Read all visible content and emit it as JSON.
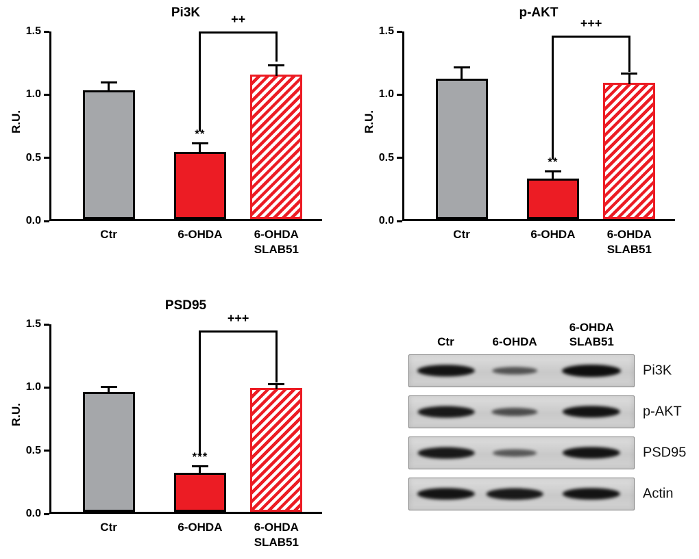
{
  "colors": {
    "gray_bar": "#a5a7aa",
    "red_bar": "#ec1c24",
    "axis": "#000000"
  },
  "chart_data": [
    {
      "type": "bar",
      "title": "Pi3K",
      "ylabel": "R.U.",
      "ylim": [
        0,
        1.5
      ],
      "yticks": [
        "0.0",
        "0.5",
        "1.0",
        "1.5"
      ],
      "categories": [
        "Ctr",
        "6-OHDA",
        "6-OHDA\nSLAB51"
      ],
      "values": [
        1.02,
        0.53,
        1.14
      ],
      "errors": [
        0.05,
        0.06,
        0.07
      ],
      "bar_styles": [
        "gray",
        "red",
        "hatch"
      ],
      "bar_annotations": [
        "",
        "**",
        ""
      ],
      "bracket": {
        "from": 1,
        "to": 2,
        "label": "++",
        "top": 1.5,
        "from_y": 0.71,
        "to_y": 1.26
      },
      "grid": false,
      "legend": false
    },
    {
      "type": "bar",
      "title": "p-AKT",
      "ylabel": "R.U.",
      "ylim": [
        0,
        1.5
      ],
      "yticks": [
        "0.0",
        "0.5",
        "1.0",
        "1.5"
      ],
      "categories": [
        "Ctr",
        "6-OHDA",
        "6-OHDA\nSLAB51"
      ],
      "values": [
        1.11,
        0.32,
        1.08
      ],
      "errors": [
        0.08,
        0.05,
        0.06
      ],
      "bar_styles": [
        "gray",
        "red",
        "hatch"
      ],
      "bar_annotations": [
        "",
        "**",
        ""
      ],
      "bracket": {
        "from": 1,
        "to": 2,
        "label": "+++",
        "top": 1.47,
        "from_y": 0.49,
        "to_y": 1.18
      },
      "grid": false,
      "legend": false
    },
    {
      "type": "bar",
      "title": "PSD95",
      "ylabel": "R.U.",
      "ylim": [
        0,
        1.5
      ],
      "yticks": [
        "0.0",
        "0.5",
        "1.0",
        "1.5"
      ],
      "categories": [
        "Ctr",
        "6-OHDA",
        "6-OHDA\nSLAB51"
      ],
      "values": [
        0.95,
        0.31,
        0.98
      ],
      "errors": [
        0.03,
        0.04,
        0.02
      ],
      "bar_styles": [
        "gray",
        "red",
        "hatch"
      ],
      "bar_annotations": [
        "",
        "***",
        ""
      ],
      "bracket": {
        "from": 1,
        "to": 2,
        "label": "+++",
        "top": 1.45,
        "from_y": 0.46,
        "to_y": 1.04
      },
      "grid": false,
      "legend": false
    }
  ],
  "blot_panel": {
    "column_headers": [
      "Ctr",
      "6-OHDA",
      "6-OHDA\nSLAB51"
    ],
    "rows": [
      {
        "label": "Pi3K",
        "band_intensities": [
          0.95,
          0.4,
          1.0
        ]
      },
      {
        "label": "p-AKT",
        "band_intensities": [
          0.9,
          0.45,
          0.95
        ]
      },
      {
        "label": "PSD95",
        "band_intensities": [
          0.9,
          0.35,
          0.95
        ]
      },
      {
        "label": "Actin",
        "band_intensities": [
          0.95,
          0.9,
          0.95
        ]
      }
    ]
  }
}
